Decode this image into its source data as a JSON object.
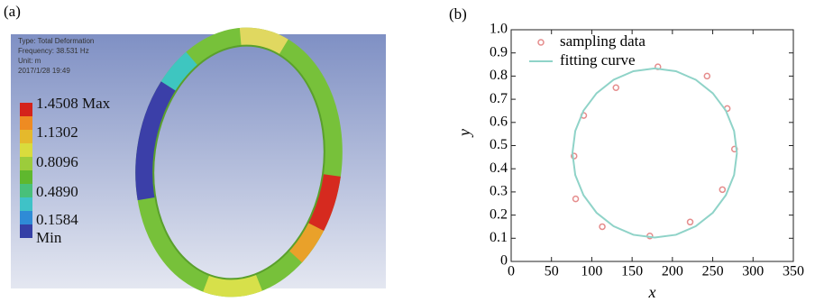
{
  "panel_a": {
    "panel_label": "(a)",
    "header": [
      "Type: Total Deformation",
      "Frequency: 38.531 Hz",
      "Unit: m",
      "2017/1/28 19:49"
    ],
    "legend_labels": [
      "1.4508 Max",
      "1.1302",
      "0.8096",
      "0.4890",
      "0.1584",
      "Min"
    ]
  },
  "chart_data": {
    "type": "scatter",
    "panel_label": "(b)",
    "xlabel": "x",
    "ylabel": "y",
    "xlim": [
      0,
      350
    ],
    "ylim": [
      0,
      1
    ],
    "xticks": [
      0,
      50,
      100,
      150,
      200,
      250,
      300,
      350
    ],
    "yticks": [
      0,
      0.1,
      0.2,
      0.3,
      0.4,
      0.5,
      0.6,
      0.7,
      0.8,
      0.9,
      {
        "value": 1,
        "label": "1.0"
      }
    ],
    "legend": "upper left",
    "series": [
      {
        "name": "sampling data",
        "type": "scatter",
        "color": "#e58c8c",
        "x": [
          78,
          80,
          90,
          113,
          130,
          172,
          182,
          222,
          243,
          262,
          268,
          277
        ],
        "y": [
          0.455,
          0.27,
          0.63,
          0.15,
          0.75,
          0.11,
          0.84,
          0.17,
          0.8,
          0.31,
          0.66,
          0.485
        ]
      },
      {
        "name": "fitting curve",
        "type": "line",
        "color": "#8fd3c8",
        "x": [
          280,
          276.5,
          266.3,
          250.1,
          229,
          204.4,
          178,
          151.6,
          127,
          105.9,
          89.7,
          79.5,
          76,
          79.5,
          89.7,
          105.9,
          127,
          151.6,
          178,
          204.4,
          229,
          250.1,
          266.3,
          276.5,
          280
        ],
        "y": [
          0.468,
          0.563,
          0.651,
          0.726,
          0.784,
          0.821,
          0.833,
          0.821,
          0.784,
          0.726,
          0.651,
          0.563,
          0.468,
          0.373,
          0.286,
          0.21,
          0.152,
          0.115,
          0.103,
          0.115,
          0.152,
          0.21,
          0.286,
          0.373,
          0.468
        ]
      }
    ]
  }
}
